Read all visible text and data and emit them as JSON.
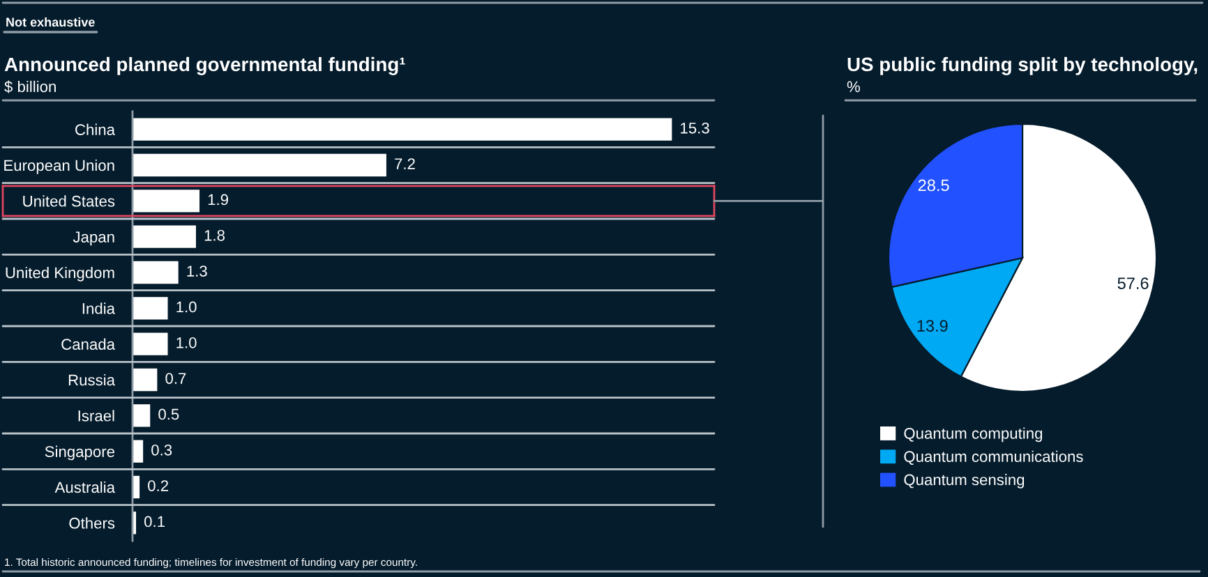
{
  "chart_data": [
    {
      "type": "bar",
      "orientation": "horizontal",
      "title": "Announced planned governmental funding¹",
      "subtitle": "$ billion",
      "categories": [
        "China",
        "European Union",
        "United States",
        "Japan",
        "United Kingdom",
        "India",
        "Canada",
        "Russia",
        "Israel",
        "Singapore",
        "Australia",
        "Others"
      ],
      "values": [
        15.3,
        7.2,
        1.9,
        1.8,
        1.3,
        1.0,
        1.0,
        0.7,
        0.5,
        0.3,
        0.2,
        0.1
      ],
      "value_labels": [
        "15.3",
        "7.2",
        "1.9",
        "1.8",
        "1.3",
        "1.0",
        "1.0",
        "0.7",
        "0.5",
        "0.3",
        "0.2",
        "0.1"
      ],
      "color": "#ffffff",
      "xlim": [
        0,
        16.5
      ],
      "tick_labels": "y",
      "annotations": [
        "Not exhaustive",
        "1. Total historic announced funding; timelines for investment of funding vary per country."
      ]
    },
    {
      "type": "pie",
      "title": "US public funding split by technology,",
      "subtitle": "%",
      "categories": [
        "Quantum computing",
        "Quantum communications",
        "Quantum sensing"
      ],
      "values": [
        57.6,
        13.9,
        28.5
      ],
      "colors": [
        "#ffffff",
        "#00a9f4",
        "#2251ff"
      ],
      "data_labels": true,
      "legend": "bottom"
    }
  ]
}
